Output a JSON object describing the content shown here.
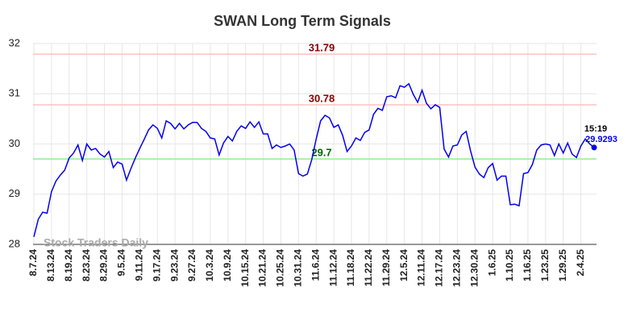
{
  "chart_data": {
    "type": "line",
    "title": "SWAN Long Term Signals",
    "categories": [
      "8.7.24",
      null,
      null,
      null,
      "8.13.24",
      null,
      null,
      null,
      "8.19.24",
      null,
      null,
      null,
      "8.23.24",
      null,
      null,
      null,
      "8.29.24",
      null,
      null,
      null,
      "9.5.24",
      null,
      null,
      null,
      "9.11.24",
      null,
      null,
      null,
      "9.17.24",
      null,
      null,
      null,
      "9.23.24",
      null,
      null,
      null,
      "9.27.24",
      null,
      null,
      null,
      "10.3.24",
      null,
      null,
      null,
      "10.9.24",
      null,
      null,
      null,
      "10.15.24",
      null,
      null,
      null,
      "10.21.24",
      null,
      null,
      null,
      "10.25.24",
      null,
      null,
      null,
      "10.31.24",
      null,
      null,
      null,
      "11.6.24",
      null,
      null,
      null,
      "11.12.24",
      null,
      null,
      null,
      "11.18.24",
      null,
      null,
      null,
      "11.22.24",
      null,
      null,
      null,
      "11.29.24",
      null,
      null,
      null,
      "12.5.24",
      null,
      null,
      null,
      "12.11.24",
      null,
      null,
      null,
      "12.17.24",
      null,
      null,
      null,
      "12.23.24",
      null,
      null,
      null,
      "12.30.24",
      null,
      null,
      null,
      "1.6.25",
      null,
      null,
      null,
      "1.10.25",
      null,
      null,
      null,
      "1.16.25",
      null,
      null,
      null,
      "1.23.25",
      null,
      null,
      null,
      "1.29.25",
      null,
      null,
      null,
      "2.4.25",
      null,
      null,
      null
    ],
    "values": [
      28.15,
      28.5,
      28.64,
      28.62,
      29.05,
      29.26,
      29.38,
      29.48,
      29.72,
      29.82,
      29.98,
      29.67,
      30.0,
      29.88,
      29.91,
      29.8,
      29.74,
      29.85,
      29.53,
      29.64,
      29.6,
      29.28,
      29.51,
      29.72,
      29.91,
      30.09,
      30.28,
      30.38,
      30.31,
      30.12,
      30.46,
      30.41,
      30.3,
      30.41,
      30.3,
      30.38,
      30.43,
      30.43,
      30.31,
      30.25,
      30.12,
      30.1,
      29.78,
      30.02,
      30.15,
      30.06,
      30.25,
      30.36,
      30.31,
      30.44,
      30.33,
      30.44,
      30.2,
      30.2,
      29.91,
      29.98,
      29.93,
      29.96,
      30.0,
      29.88,
      29.41,
      29.36,
      29.4,
      29.69,
      30.1,
      30.46,
      30.57,
      30.52,
      30.33,
      30.38,
      30.17,
      29.85,
      29.96,
      30.12,
      30.07,
      30.23,
      30.28,
      30.59,
      30.71,
      30.67,
      30.94,
      30.96,
      30.92,
      31.16,
      31.13,
      31.2,
      30.99,
      30.83,
      31.07,
      30.81,
      30.7,
      30.78,
      30.73,
      29.9,
      29.74,
      29.96,
      29.98,
      30.18,
      30.25,
      29.86,
      29.54,
      29.4,
      29.33,
      29.53,
      29.61,
      29.28,
      29.36,
      29.36,
      28.79,
      28.8,
      28.77,
      29.41,
      29.43,
      29.59,
      29.88,
      29.98,
      30.0,
      29.98,
      29.77,
      30.0,
      29.82,
      30.02,
      29.8,
      29.73,
      29.96,
      30.1,
      30.0,
      29.9293
    ],
    "color": "#0000ee",
    "ylim": [
      28,
      32
    ],
    "yticks": [
      28,
      29,
      30,
      31,
      32
    ],
    "grid": true,
    "hlines": [
      {
        "value": 31.79,
        "color": "#ffc0c0",
        "label_color": "#8b0000"
      },
      {
        "value": 30.78,
        "color": "#ffc0c0",
        "label_color": "#8b0000"
      },
      {
        "value": 29.7,
        "color": "#90ee90",
        "label_color": "#006400"
      }
    ],
    "last_time": "15:19",
    "watermark": "Stock Traders Daily"
  }
}
